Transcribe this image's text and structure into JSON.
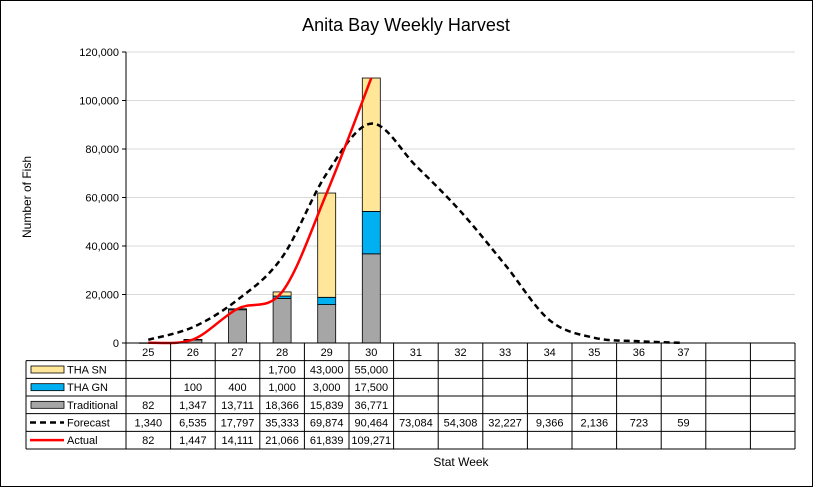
{
  "chart_data": {
    "type": "bar",
    "title": "Anita Bay Weekly Harvest",
    "xlabel": "Stat Week",
    "ylabel": "Number of Fish",
    "ylim": [
      0,
      120000
    ],
    "y_ticks": [
      "0",
      "20,000",
      "40,000",
      "60,000",
      "80,000",
      "100,000",
      "120,000"
    ],
    "y_tick_values": [
      0,
      20000,
      40000,
      60000,
      80000,
      100000,
      120000
    ],
    "grid": true,
    "legend_placement": "data-table-left",
    "categories": [
      "25",
      "26",
      "27",
      "28",
      "29",
      "30",
      "31",
      "32",
      "33",
      "34",
      "35",
      "36",
      "37",
      "",
      ""
    ],
    "series": [
      {
        "name": "THA SN",
        "kind": "stacked-bar",
        "color": "#FFE699",
        "values": [
          null,
          null,
          null,
          1700,
          43000,
          55000,
          null,
          null,
          null,
          null,
          null,
          null,
          null,
          null,
          null
        ],
        "labels": [
          "",
          "",
          "",
          "1,700",
          "43,000",
          "55,000",
          "",
          "",
          "",
          "",
          "",
          "",
          "",
          "",
          ""
        ]
      },
      {
        "name": "THA GN",
        "kind": "stacked-bar",
        "color": "#00B0F0",
        "values": [
          null,
          100,
          400,
          1000,
          3000,
          17500,
          null,
          null,
          null,
          null,
          null,
          null,
          null,
          null,
          null
        ],
        "labels": [
          "",
          "100",
          "400",
          "1,000",
          "3,000",
          "17,500",
          "",
          "",
          "",
          "",
          "",
          "",
          "",
          "",
          ""
        ]
      },
      {
        "name": "Traditional",
        "kind": "stacked-bar",
        "color": "#A6A6A6",
        "values": [
          82,
          1347,
          13711,
          18366,
          15839,
          36771,
          null,
          null,
          null,
          null,
          null,
          null,
          null,
          null,
          null
        ],
        "labels": [
          "82",
          "1,347",
          "13,711",
          "18,366",
          "15,839",
          "36,771",
          "",
          "",
          "",
          "",
          "",
          "",
          "",
          "",
          ""
        ]
      },
      {
        "name": "Forecast",
        "kind": "dashed-line",
        "color": "#000000",
        "values": [
          1340,
          6535,
          17797,
          35333,
          69874,
          90464,
          73084,
          54308,
          32227,
          9366,
          2136,
          723,
          59,
          null,
          null
        ],
        "labels": [
          "1,340",
          "6,535",
          "17,797",
          "35,333",
          "69,874",
          "90,464",
          "73,084",
          "54,308",
          "32,227",
          "9,366",
          "2,136",
          "723",
          "59",
          "",
          ""
        ]
      },
      {
        "name": "Actual",
        "kind": "line",
        "color": "#FF0000",
        "values": [
          82,
          1447,
          14111,
          21066,
          61839,
          109271,
          null,
          null,
          null,
          null,
          null,
          null,
          null,
          null,
          null
        ],
        "labels": [
          "82",
          "1,447",
          "14,111",
          "21,066",
          "61,839",
          "109,271",
          "",
          "",
          "",
          "",
          "",
          "",
          "",
          "",
          ""
        ]
      }
    ]
  }
}
